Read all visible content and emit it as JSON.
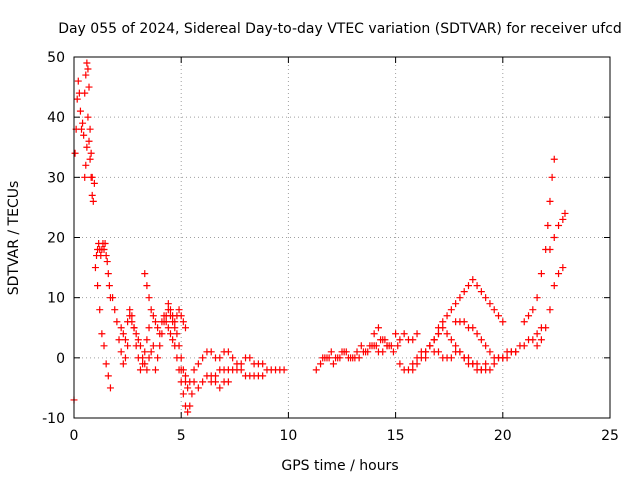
{
  "chart_data": {
    "type": "scatter",
    "title": "Day 055 of 2024, Sidereal Day-to-day VTEC variation (SDTVAR) for receiver ufcd",
    "xlabel": "GPS time / hours",
    "ylabel": "SDTVAR / TECUs",
    "xlim": [
      0,
      25
    ],
    "ylim": [
      -10,
      50
    ],
    "xticks": [
      0,
      5,
      10,
      15,
      20,
      25
    ],
    "yticks": [
      -10,
      0,
      10,
      20,
      30,
      40,
      50
    ],
    "xtick_labels": [
      "0",
      "5",
      "10",
      "15",
      "20",
      "25"
    ],
    "ytick_labels": [
      "-10",
      "0",
      "10",
      "20",
      "30",
      "40",
      "50"
    ],
    "grid": true,
    "marker": "+",
    "color": "#ff0000",
    "series": [
      {
        "name": "SDTVAR",
        "x": [
          0.0,
          0.05,
          0.1,
          0.15,
          0.2,
          0.25,
          0.3,
          0.35,
          0.4,
          0.45,
          0.5,
          0.55,
          0.6,
          0.65,
          0.7,
          0.75,
          0.8,
          0.85,
          0.9,
          0.95,
          0.5,
          0.55,
          0.6,
          0.65,
          0.7,
          0.75,
          0.8,
          0.85,
          1.0,
          1.05,
          1.1,
          1.15,
          1.2,
          1.25,
          1.3,
          1.35,
          1.4,
          1.45,
          1.5,
          1.55,
          1.6,
          1.65,
          1.7,
          1.1,
          1.2,
          1.3,
          1.4,
          1.5,
          1.6,
          1.7,
          1.8,
          1.9,
          2.0,
          2.1,
          2.2,
          2.3,
          2.4,
          2.5,
          2.2,
          2.3,
          2.4,
          2.5,
          2.6,
          2.7,
          2.8,
          2.9,
          3.0,
          3.1,
          3.2,
          3.3,
          3.4,
          3.5,
          2.6,
          2.7,
          2.8,
          2.9,
          3.0,
          3.1,
          3.2,
          3.3,
          3.4,
          3.5,
          3.6,
          3.7,
          3.3,
          3.4,
          3.5,
          3.6,
          3.7,
          3.8,
          3.9,
          4.0,
          4.1,
          4.2,
          4.3,
          4.4,
          4.5,
          4.6,
          4.7,
          4.8,
          4.9,
          5.0,
          5.1,
          5.2,
          5.3,
          5.4,
          5.5,
          3.8,
          3.9,
          4.0,
          4.1,
          4.2,
          4.3,
          4.4,
          4.5,
          4.6,
          4.7,
          4.8,
          4.9,
          5.0,
          5.1,
          5.2,
          5.3,
          4.4,
          4.5,
          4.6,
          4.7,
          4.8,
          4.9,
          5.0,
          5.1,
          5.2,
          5.0,
          5.2,
          5.4,
          5.6,
          5.8,
          6.0,
          6.2,
          6.4,
          6.6,
          6.8,
          7.0,
          7.2,
          5.6,
          5.8,
          6.0,
          6.2,
          6.4,
          6.6,
          6.8,
          7.0,
          7.2,
          7.4,
          7.6,
          7.8,
          8.0,
          8.2,
          8.4,
          8.6,
          8.8,
          9.0,
          9.2,
          9.4,
          9.6,
          9.8,
          6.4,
          6.6,
          6.8,
          7.0,
          7.2,
          7.4,
          7.6,
          7.8,
          8.0,
          8.2,
          8.4,
          8.6,
          8.8,
          11.3,
          11.5,
          11.7,
          11.9,
          12.1,
          12.3,
          12.5,
          12.7,
          12.9,
          13.1,
          13.3,
          13.5,
          13.7,
          13.9,
          14.1,
          14.3,
          14.5,
          14.7,
          14.9,
          15.1,
          11.6,
          11.8,
          12.0,
          12.2,
          12.4,
          12.6,
          12.8,
          13.0,
          13.2,
          13.4,
          13.6,
          13.8,
          14.0,
          14.2,
          14.4,
          14.6,
          14.0,
          14.2,
          14.4,
          14.6,
          14.8,
          15.0,
          15.2,
          15.4,
          15.6,
          15.8,
          16.0,
          15.2,
          15.4,
          15.6,
          15.8,
          16.0,
          16.2,
          16.4,
          16.6,
          16.8,
          17.0,
          17.2,
          17.4,
          17.6,
          17.8,
          18.0,
          18.2,
          18.4,
          18.6,
          18.8,
          19.0,
          19.2,
          19.4,
          19.6,
          19.8,
          20.0,
          20.2,
          20.4,
          20.6,
          15.8,
          16.0,
          16.2,
          16.4,
          16.6,
          16.8,
          17.0,
          16.4,
          16.6,
          16.8,
          17.0,
          17.2,
          17.4,
          17.6,
          17.8,
          18.0,
          18.2,
          18.4,
          18.6,
          18.8,
          19.0,
          19.2,
          17.0,
          17.2,
          17.4,
          17.6,
          17.8,
          18.0,
          18.2,
          18.4,
          18.6,
          18.8,
          19.0,
          19.2,
          19.4,
          19.6,
          19.8,
          20.0,
          17.8,
          18.0,
          18.2,
          18.4,
          18.6,
          18.8,
          19.0,
          19.2,
          19.4,
          19.6,
          19.8,
          20.0,
          20.2,
          20.4,
          20.6,
          20.8,
          21.0,
          21.2,
          21.4,
          21.6,
          21.8,
          21.0,
          21.2,
          21.4,
          21.6,
          21.8,
          22.0,
          22.1,
          22.2,
          22.3,
          22.4,
          21.6,
          21.8,
          22.0,
          22.2,
          22.4,
          22.6,
          22.8,
          22.2,
          22.4,
          22.6,
          22.8,
          22.9
        ],
        "y": [
          -7,
          34,
          38,
          43,
          46,
          44,
          41,
          38,
          39,
          37,
          30,
          32,
          35,
          40,
          36,
          33,
          30,
          27,
          26,
          29,
          44,
          47,
          49,
          48,
          45,
          38,
          34,
          30,
          15,
          17,
          18,
          19,
          18,
          17,
          18,
          19,
          18,
          19,
          17,
          16,
          14,
          12,
          10,
          12,
          8,
          4,
          2,
          -1,
          -3,
          -5,
          10,
          8,
          6,
          3,
          1,
          -1,
          0,
          2,
          5,
          4,
          3,
          6,
          8,
          7,
          5,
          2,
          0,
          -2,
          -1,
          1,
          3,
          5,
          7,
          6,
          5,
          4,
          3,
          2,
          0,
          -1,
          -2,
          0,
          1,
          2,
          14,
          12,
          10,
          8,
          7,
          6,
          5,
          4,
          6,
          7,
          6,
          5,
          4,
          3,
          2,
          0,
          -2,
          -4,
          -6,
          -8,
          -9,
          -8,
          -6,
          -2,
          0,
          2,
          4,
          6,
          7,
          8,
          7,
          6,
          5,
          4,
          2,
          0,
          -2,
          -4,
          -5,
          9,
          8,
          7,
          6,
          7,
          8,
          7,
          6,
          5,
          -2,
          -3,
          -4,
          -4,
          -5,
          -4,
          -3,
          -4,
          -4,
          -5,
          -4,
          -4,
          -2,
          -1,
          0,
          1,
          1,
          0,
          0,
          1,
          1,
          0,
          -1,
          -1,
          0,
          0,
          -1,
          -1,
          -1,
          -2,
          -2,
          -2,
          -2,
          -2,
          -3,
          -3,
          -2,
          -2,
          -2,
          -2,
          -2,
          -2,
          -3,
          -3,
          -3,
          -3,
          -3,
          -2,
          -1,
          0,
          0,
          -1,
          0,
          1,
          1,
          0,
          0,
          0,
          1,
          1,
          2,
          2,
          3,
          3,
          2,
          1,
          2,
          0,
          0,
          1,
          0,
          0,
          1,
          0,
          0,
          1,
          2,
          1,
          2,
          2,
          1,
          1,
          2,
          4,
          5,
          3,
          2,
          2,
          4,
          3,
          4,
          3,
          3,
          4,
          -1,
          -2,
          -2,
          -1,
          0,
          1,
          1,
          2,
          1,
          1,
          0,
          0,
          0,
          1,
          1,
          0,
          0,
          -1,
          -1,
          -2,
          -2,
          -2,
          -1,
          0,
          0,
          1,
          1,
          1,
          -2,
          -1,
          0,
          1,
          2,
          3,
          4,
          0,
          2,
          3,
          4,
          5,
          4,
          3,
          2,
          1,
          0,
          -1,
          -1,
          -2,
          -2,
          -1,
          5,
          6,
          7,
          8,
          9,
          10,
          11,
          12,
          13,
          12,
          11,
          10,
          9,
          8,
          7,
          6,
          6,
          6,
          6,
          5,
          5,
          4,
          3,
          2,
          1,
          0,
          0,
          0,
          0,
          1,
          1,
          2,
          2,
          3,
          3,
          4,
          5,
          6,
          7,
          8,
          10,
          14,
          18,
          22,
          26,
          30,
          33,
          2,
          3,
          5,
          8,
          12,
          14,
          15,
          18,
          20,
          22,
          23,
          24
        ]
      }
    ]
  }
}
